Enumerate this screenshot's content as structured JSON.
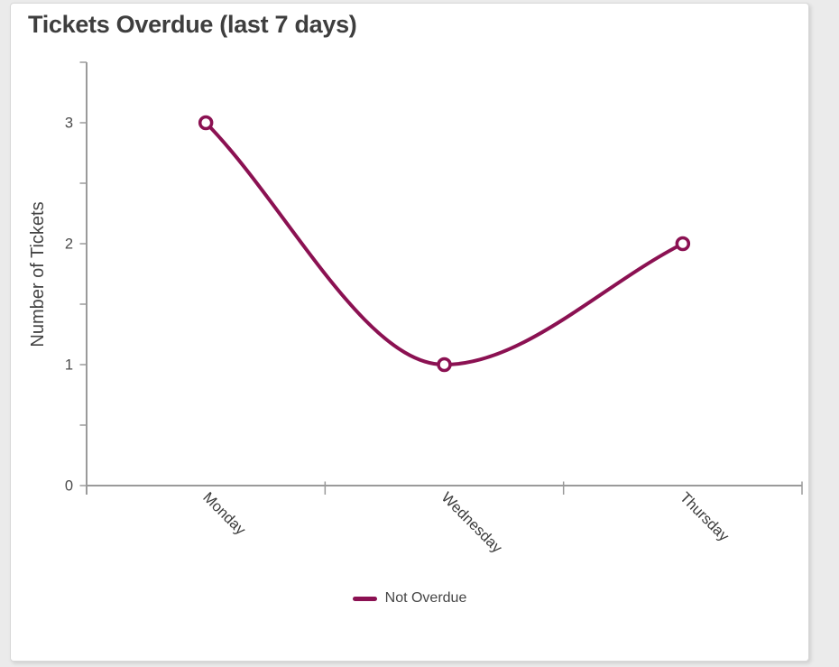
{
  "header": {
    "title": "Tickets Overdue (last 7 days)"
  },
  "legend": {
    "items": [
      {
        "label": "Not Overdue",
        "color": "#8B1152"
      }
    ]
  },
  "chart_data": {
    "type": "line",
    "title": "Tickets Overdue (last 7 days)",
    "categories": [
      "Monday",
      "Wednesday",
      "Thursday"
    ],
    "series": [
      {
        "name": "Not Overdue",
        "color": "#8B1152",
        "values": [
          3,
          1,
          2
        ]
      }
    ],
    "xlabel": "",
    "ylabel": "Number of Tickets",
    "ylim": [
      0,
      3.5
    ],
    "yticks": [
      0,
      1,
      2,
      3
    ],
    "ytick_step_minor": 0.5,
    "grid": false,
    "curve": "smooth-monotone",
    "marker": "open-circle",
    "legend_position": "bottom",
    "x_label_rotation_deg": 45,
    "colors": {
      "axis": "#9a9a9a",
      "tick_label": "#4b4b4b",
      "category_label": "#3a3a3a",
      "title_text": "#3e3e3e",
      "plot_background": "#ffffff"
    }
  }
}
